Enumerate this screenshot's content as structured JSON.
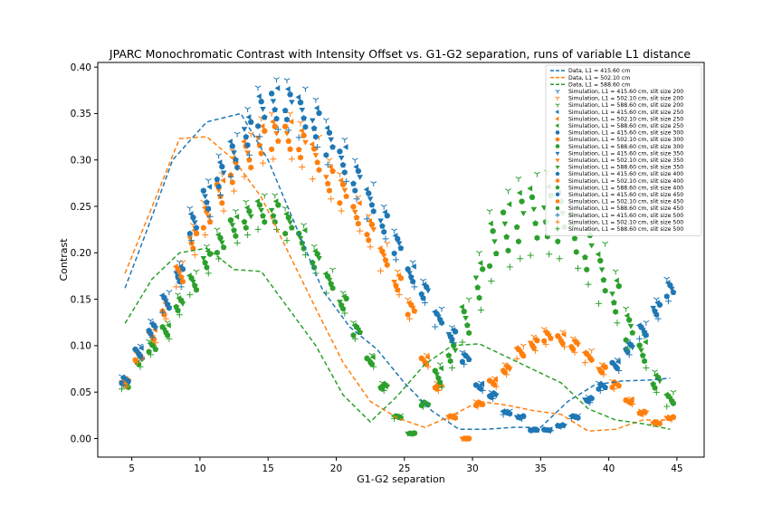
{
  "chart_data": {
    "type": "line",
    "title": "JPARC Monochromatic Contrast with Intensity Offset vs. G1-G2 separation, runs of variable L1 distance",
    "xlabel": "G1-G2 separation",
    "ylabel": "Contrast",
    "xlim": [
      2.5,
      47.0
    ],
    "ylim": [
      -0.02,
      0.405
    ],
    "xticks": [
      5,
      10,
      15,
      20,
      25,
      30,
      35,
      40,
      45
    ],
    "yticks": [
      0.0,
      0.05,
      0.1,
      0.15,
      0.2,
      0.25,
      0.3,
      0.35,
      0.4
    ],
    "ytick_labels": [
      "0.00",
      "0.05",
      "0.10",
      "0.15",
      "0.20",
      "0.25",
      "0.30",
      "0.35",
      "0.40"
    ],
    "grid": false,
    "legend_position": "top-right",
    "colors": {
      "blue": "#1f77b4",
      "orange": "#ff7f0e",
      "green": "#2ca02c"
    },
    "data_series": [
      {
        "name": "Data, L1 = 415.60 cm",
        "color": "#1f77b4",
        "x": [
          4.5,
          6,
          8,
          10.5,
          13,
          15,
          17,
          19,
          21,
          23,
          25,
          27,
          29,
          31,
          33,
          35,
          37,
          39,
          41,
          43,
          44.5
        ],
        "y": [
          0.162,
          0.22,
          0.3,
          0.341,
          0.35,
          0.3,
          0.23,
          0.16,
          0.12,
          0.096,
          0.06,
          0.03,
          0.01,
          0.01,
          0.012,
          0.012,
          0.04,
          0.058,
          0.062,
          0.063,
          0.065
        ]
      },
      {
        "name": "Data, L1 = 502.10 cm",
        "color": "#ff7f0e",
        "x": [
          4.5,
          6.5,
          8.5,
          10.5,
          12.5,
          14.5,
          16.5,
          18.5,
          20.5,
          22.5,
          24.5,
          26.5,
          28.5,
          30.5,
          32.5,
          34.5,
          36.5,
          38.5,
          40.5,
          42.5,
          44.5
        ],
        "y": [
          0.178,
          0.25,
          0.323,
          0.325,
          0.3,
          0.26,
          0.2,
          0.14,
          0.082,
          0.04,
          0.022,
          0.012,
          0.025,
          0.04,
          0.036,
          0.03,
          0.026,
          0.008,
          0.01,
          0.02,
          0.02
        ]
      },
      {
        "name": "Data, L1 = 588.60 cm",
        "color": "#2ca02c",
        "x": [
          4.5,
          6.5,
          8.5,
          10.5,
          12.5,
          14.5,
          16.5,
          18.5,
          20.5,
          22.5,
          24.5,
          26.5,
          28.5,
          30.5,
          32.5,
          34.5,
          36.5,
          38.5,
          40.5,
          42.5,
          44.5
        ],
        "y": [
          0.124,
          0.172,
          0.2,
          0.205,
          0.182,
          0.18,
          0.14,
          0.1,
          0.047,
          0.018,
          0.046,
          0.08,
          0.1,
          0.102,
          0.088,
          0.074,
          0.06,
          0.032,
          0.02,
          0.016,
          0.01
        ]
      }
    ],
    "sim_x": [
      4.5,
      5.5,
      6.5,
      7.5,
      8.5,
      9.5,
      10.5,
      11.5,
      12.5,
      13.5,
      14.5,
      15.5,
      16.5,
      17.5,
      18.5,
      19.5,
      20.5,
      21.5,
      22.5,
      23.5,
      24.5,
      25.5,
      26.5,
      27.5,
      28.5,
      29.5,
      30.5,
      31.5,
      32.5,
      33.5,
      34.5,
      35.5,
      36.5,
      37.5,
      38.5,
      39.5,
      40.5,
      41.5,
      42.5,
      43.5,
      44.5
    ],
    "sim_base": [
      [
        0.067,
        0.1,
        0.127,
        0.158,
        0.19,
        0.248,
        0.278,
        0.305,
        0.328,
        0.355,
        0.378,
        0.387,
        0.386,
        0.377,
        0.365,
        0.343,
        0.322,
        0.3,
        0.275,
        0.25,
        0.224,
        0.19,
        0.17,
        0.14,
        0.12,
        0.093,
        0.06,
        0.05,
        0.03,
        0.025,
        0.01,
        0.01,
        0.015,
        0.025,
        0.045,
        0.06,
        0.085,
        0.105,
        0.125,
        0.15,
        0.172
      ],
      [
        0.065,
        0.095,
        0.12,
        0.15,
        0.19,
        0.23,
        0.255,
        0.285,
        0.31,
        0.328,
        0.345,
        0.35,
        0.35,
        0.34,
        0.325,
        0.3,
        0.285,
        0.26,
        0.24,
        0.21,
        0.18,
        0.15,
        0.09,
        0.06,
        0.025,
        0.0,
        0.04,
        0.065,
        0.08,
        0.1,
        0.11,
        0.118,
        0.115,
        0.108,
        0.095,
        0.08,
        0.062,
        0.043,
        0.03,
        0.018,
        0.024
      ],
      [
        0.062,
        0.09,
        0.105,
        0.125,
        0.155,
        0.18,
        0.207,
        0.225,
        0.245,
        0.255,
        0.262,
        0.262,
        0.248,
        0.23,
        0.207,
        0.182,
        0.157,
        0.125,
        0.09,
        0.06,
        0.025,
        0.006,
        0.04,
        0.08,
        0.11,
        0.15,
        0.2,
        0.245,
        0.267,
        0.28,
        0.285,
        0.287,
        0.28,
        0.265,
        0.24,
        0.21,
        0.18,
        0.14,
        0.11,
        0.072,
        0.05
      ]
    ],
    "sim_sizes": [
      200,
      250,
      300,
      350,
      400,
      450,
      500
    ],
    "sim_groups": [
      {
        "name": "Simulation, L1 = 415.60 cm, slit size 200",
        "color": "#1f77b4",
        "marker": "tri_down",
        "L": 0,
        "S": 0
      },
      {
        "name": "Simulation, L1 = 502.10 cm, slit size 200",
        "color": "#ff7f0e",
        "marker": "tri_down",
        "L": 1,
        "S": 0
      },
      {
        "name": "Simulation, L1 = 588.60 cm, slit size 200",
        "color": "#2ca02c",
        "marker": "tri_down",
        "L": 2,
        "S": 0
      },
      {
        "name": "Simulation, L1 = 415.60 cm, slit size 250",
        "color": "#1f77b4",
        "marker": "triangle_left",
        "L": 0,
        "S": 1
      },
      {
        "name": "Simulation, L1 = 502.10 cm, slit size 250",
        "color": "#ff7f0e",
        "marker": "triangle_left",
        "L": 1,
        "S": 1
      },
      {
        "name": "Simulation, L1 = 588.60 cm, slit size 250",
        "color": "#2ca02c",
        "marker": "triangle_left",
        "L": 2,
        "S": 1
      },
      {
        "name": "Simulation, L1 = 415.60 cm, slit size 300",
        "color": "#1f77b4",
        "marker": "circle",
        "L": 0,
        "S": 2
      },
      {
        "name": "Simulation, L1 = 502.10 cm, slit size 300",
        "color": "#ff7f0e",
        "marker": "circle",
        "L": 1,
        "S": 2
      },
      {
        "name": "Simulation, L1 = 588.60 cm, slit size 300",
        "color": "#2ca02c",
        "marker": "circle",
        "L": 2,
        "S": 2
      },
      {
        "name": "Simulation, L1 = 415.60 cm, slit size 350",
        "color": "#1f77b4",
        "marker": "triangle_down",
        "L": 0,
        "S": 3
      },
      {
        "name": "Simulation, L1 = 502.10 cm, slit size 350",
        "color": "#ff7f0e",
        "marker": "triangle_down",
        "L": 1,
        "S": 3
      },
      {
        "name": "Simulation, L1 = 588.60 cm, slit size 350",
        "color": "#2ca02c",
        "marker": "triangle_down",
        "L": 2,
        "S": 3
      },
      {
        "name": "Simulation, L1 = 415.60 cm, slit size 400",
        "color": "#1f77b4",
        "marker": "pentagon",
        "L": 0,
        "S": 4
      },
      {
        "name": "Simulation, L1 = 502.10 cm, slit size 400",
        "color": "#ff7f0e",
        "marker": "pentagon",
        "L": 1,
        "S": 4
      },
      {
        "name": "Simulation, L1 = 588.60 cm, slit size 400",
        "color": "#2ca02c",
        "marker": "pentagon",
        "L": 2,
        "S": 4
      },
      {
        "name": "Simulation, L1 = 415.60 cm, slit size 450",
        "color": "#1f77b4",
        "marker": "hexagon",
        "L": 0,
        "S": 5
      },
      {
        "name": "Simulation, L1 = 502.10 cm, slit size 450",
        "color": "#ff7f0e",
        "marker": "hexagon",
        "L": 1,
        "S": 5
      },
      {
        "name": "Simulation, L1 = 588.60 cm, slit size 450",
        "color": "#2ca02c",
        "marker": "hexagon",
        "L": 2,
        "S": 5
      },
      {
        "name": "Simulation, L1 = 415.60 cm, slit size 500",
        "color": "#1f77b4",
        "marker": "plus",
        "L": 0,
        "S": 6
      },
      {
        "name": "Simulation, L1 = 502.10 cm, slit size 500",
        "color": "#ff7f0e",
        "marker": "plus",
        "L": 1,
        "S": 6
      },
      {
        "name": "Simulation, L1 = 588.60 cm, slit size 500",
        "color": "#2ca02c",
        "marker": "plus",
        "L": 2,
        "S": 6
      }
    ]
  }
}
